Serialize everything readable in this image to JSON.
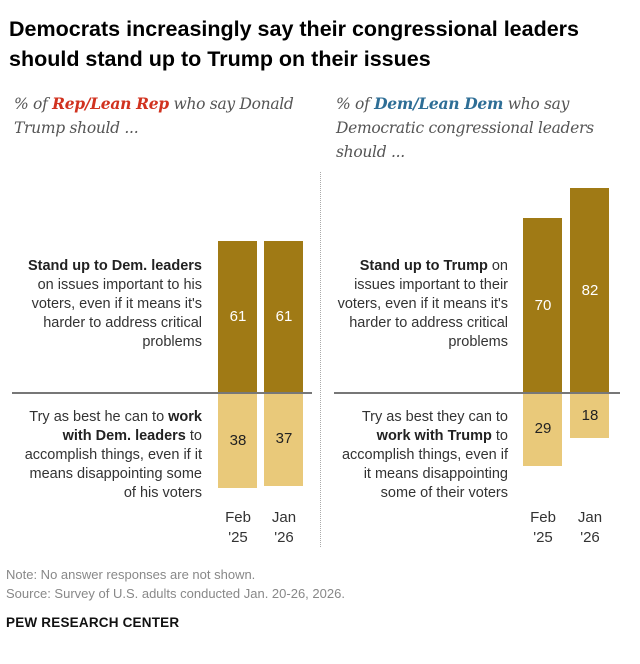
{
  "title": "Democrats increasingly say their congressional leaders should stand up to Trump on their issues",
  "colors": {
    "dark": "#a07a15",
    "light": "#e9c97a",
    "rep": "#d1321f",
    "dem": "#2e6e96"
  },
  "left_panel": {
    "sub_pre": "% of ",
    "sub_group": "Rep/Lean Rep",
    "sub_post": " who say Donald Trump should ...",
    "top_label_bold": "Stand up to Dem. leaders",
    "top_label_rest": " on issues important to his voters, even if it means it's harder to address critical problems",
    "bottom_label_pre": "Try as best he can to ",
    "bottom_label_bold": "work with Dem. leaders",
    "bottom_label_post": " to accomplish things, even if it means disappointing some of his voters"
  },
  "right_panel": {
    "sub_pre": "% of ",
    "sub_group": "Dem/Lean Dem",
    "sub_post": " who say Democratic congressional leaders should ...",
    "top_label_bold": "Stand up to Trump",
    "top_label_rest": " on issues important to their voters, even if it means it's harder to address critical problems",
    "bottom_label_pre": "Try as best they can to ",
    "bottom_label_bold": "work with Trump",
    "bottom_label_post": " to accomplish things, even if it means disappointing some of their voters"
  },
  "chart_data": [
    {
      "type": "bar",
      "subtitle": "% of Rep/Lean Rep who say Donald Trump should ...",
      "categories": [
        "Feb '25",
        "Jan '26"
      ],
      "series": [
        {
          "name": "Stand up to Dem. leaders",
          "values": [
            61,
            61
          ]
        },
        {
          "name": "Work with Dem. leaders",
          "values": [
            38,
            37
          ]
        }
      ]
    },
    {
      "type": "bar",
      "subtitle": "% of Dem/Lean Dem who say Democratic congressional leaders should ...",
      "categories": [
        "Feb '25",
        "Jan '26"
      ],
      "series": [
        {
          "name": "Stand up to Trump",
          "values": [
            70,
            82
          ]
        },
        {
          "name": "Work with Trump",
          "values": [
            29,
            18
          ]
        }
      ]
    }
  ],
  "x_labels": [
    [
      "Feb",
      "'25"
    ],
    [
      "Jan",
      "'26"
    ]
  ],
  "note": "Note: No answer responses are not shown.",
  "source": "Source: Survey of U.S. adults conducted Jan. 20-26, 2026.",
  "org": "PEW RESEARCH CENTER"
}
